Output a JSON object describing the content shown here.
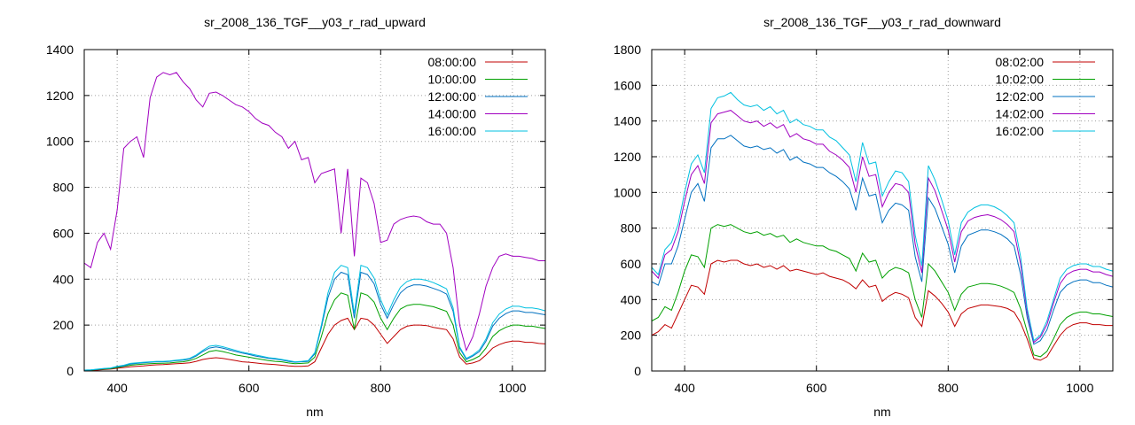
{
  "colors": [
    "#c00000",
    "#00a000",
    "#0070c0",
    "#a000c0",
    "#00c0e0"
  ],
  "chart_data": [
    {
      "type": "line",
      "title": "sr_2008_136_TGF__y03_r_rad_upward",
      "xlabel": "nm",
      "ylabel": "",
      "xlim": [
        350,
        1050
      ],
      "ylim": [
        0,
        1400
      ],
      "xticks": [
        400,
        600,
        800,
        1000
      ],
      "yticks": [
        0,
        200,
        400,
        600,
        800,
        1000,
        1200,
        1400
      ],
      "grid": true,
      "legend_position": "top-right",
      "x": [
        350,
        360,
        370,
        380,
        390,
        400,
        410,
        420,
        430,
        440,
        450,
        460,
        470,
        480,
        490,
        500,
        510,
        520,
        530,
        540,
        550,
        560,
        570,
        580,
        590,
        600,
        610,
        620,
        630,
        640,
        650,
        660,
        670,
        680,
        690,
        700,
        710,
        720,
        730,
        740,
        750,
        760,
        770,
        780,
        790,
        800,
        810,
        820,
        830,
        840,
        850,
        860,
        870,
        880,
        890,
        900,
        910,
        920,
        930,
        940,
        950,
        960,
        970,
        980,
        990,
        1000,
        1010,
        1020,
        1030,
        1040,
        1050
      ],
      "series": [
        {
          "name": "08:00:00",
          "values": [
            2,
            3,
            4,
            6,
            8,
            12,
            15,
            18,
            20,
            22,
            25,
            27,
            28,
            30,
            32,
            33,
            36,
            42,
            50,
            55,
            58,
            55,
            50,
            45,
            40,
            38,
            35,
            32,
            30,
            28,
            25,
            22,
            20,
            20,
            22,
            40,
            100,
            160,
            200,
            220,
            230,
            180,
            230,
            225,
            200,
            160,
            120,
            150,
            180,
            195,
            200,
            200,
            198,
            190,
            185,
            180,
            140,
            60,
            30,
            35,
            45,
            70,
            100,
            115,
            125,
            130,
            130,
            125,
            125,
            120,
            118
          ]
        },
        {
          "name": "10:00:00",
          "values": [
            3,
            4,
            6,
            8,
            10,
            15,
            20,
            25,
            28,
            30,
            32,
            33,
            34,
            35,
            38,
            40,
            45,
            55,
            70,
            85,
            90,
            85,
            78,
            70,
            65,
            60,
            55,
            50,
            45,
            42,
            40,
            35,
            32,
            33,
            35,
            60,
            150,
            250,
            310,
            340,
            330,
            180,
            340,
            330,
            300,
            230,
            180,
            230,
            270,
            285,
            290,
            290,
            285,
            280,
            270,
            260,
            200,
            80,
            40,
            50,
            65,
            100,
            150,
            175,
            190,
            200,
            200,
            195,
            195,
            190,
            185
          ]
        },
        {
          "name": "12:00:00",
          "values": [
            4,
            5,
            7,
            10,
            12,
            18,
            22,
            30,
            33,
            36,
            38,
            40,
            40,
            42,
            45,
            47,
            52,
            65,
            85,
            100,
            105,
            100,
            92,
            85,
            78,
            72,
            65,
            60,
            55,
            52,
            48,
            42,
            38,
            40,
            42,
            75,
            190,
            320,
            400,
            430,
            420,
            230,
            430,
            420,
            380,
            290,
            230,
            290,
            340,
            365,
            375,
            375,
            370,
            360,
            350,
            335,
            260,
            100,
            50,
            65,
            85,
            130,
            195,
            230,
            250,
            262,
            262,
            255,
            255,
            250,
            245
          ]
        },
        {
          "name": "14:00:00",
          "values": [
            470,
            450,
            560,
            600,
            530,
            700,
            970,
            1000,
            1020,
            930,
            1190,
            1280,
            1300,
            1290,
            1300,
            1260,
            1230,
            1180,
            1150,
            1210,
            1215,
            1200,
            1180,
            1160,
            1150,
            1130,
            1100,
            1080,
            1070,
            1040,
            1020,
            970,
            1000,
            920,
            930,
            820,
            860,
            870,
            880,
            600,
            880,
            500,
            840,
            820,
            730,
            560,
            570,
            640,
            660,
            670,
            675,
            670,
            650,
            640,
            640,
            600,
            450,
            200,
            90,
            150,
            250,
            370,
            450,
            500,
            510,
            500,
            500,
            495,
            490,
            480,
            480
          ]
        },
        {
          "name": "16:00:00",
          "values": [
            4,
            5,
            8,
            11,
            13,
            20,
            25,
            33,
            36,
            38,
            40,
            42,
            42,
            44,
            47,
            50,
            55,
            70,
            90,
            108,
            112,
            106,
            98,
            90,
            82,
            76,
            70,
            64,
            58,
            55,
            50,
            45,
            40,
            42,
            45,
            80,
            200,
            340,
            430,
            460,
            450,
            250,
            460,
            450,
            405,
            310,
            245,
            310,
            365,
            390,
            400,
            400,
            395,
            385,
            372,
            358,
            275,
            105,
            55,
            70,
            92,
            140,
            210,
            248,
            270,
            282,
            282,
            275,
            275,
            270,
            262
          ]
        }
      ]
    },
    {
      "type": "line",
      "title": "sr_2008_136_TGF__y03_r_rad_downward",
      "xlabel": "nm",
      "ylabel": "",
      "xlim": [
        350,
        1050
      ],
      "ylim": [
        0,
        1800
      ],
      "xticks": [
        400,
        600,
        800,
        1000
      ],
      "yticks": [
        0,
        200,
        400,
        600,
        800,
        1000,
        1200,
        1400,
        1600,
        1800
      ],
      "grid": true,
      "legend_position": "top-right",
      "x": [
        350,
        360,
        370,
        380,
        390,
        400,
        410,
        420,
        430,
        440,
        450,
        460,
        470,
        480,
        490,
        500,
        510,
        520,
        530,
        540,
        550,
        560,
        570,
        580,
        590,
        600,
        610,
        620,
        630,
        640,
        650,
        660,
        670,
        680,
        690,
        700,
        710,
        720,
        730,
        740,
        750,
        760,
        770,
        780,
        790,
        800,
        810,
        820,
        830,
        840,
        850,
        860,
        870,
        880,
        890,
        900,
        910,
        920,
        930,
        940,
        950,
        960,
        970,
        980,
        990,
        1000,
        1010,
        1020,
        1030,
        1040,
        1050
      ],
      "series": [
        {
          "name": "08:02:00",
          "values": [
            200,
            220,
            260,
            240,
            320,
            400,
            480,
            470,
            430,
            600,
            620,
            610,
            620,
            620,
            600,
            590,
            600,
            580,
            590,
            570,
            590,
            560,
            570,
            560,
            550,
            540,
            550,
            530,
            520,
            510,
            490,
            460,
            510,
            470,
            480,
            390,
            420,
            440,
            430,
            410,
            300,
            250,
            450,
            420,
            380,
            330,
            250,
            320,
            350,
            360,
            370,
            370,
            365,
            360,
            350,
            330,
            270,
            180,
            70,
            60,
            80,
            140,
            200,
            240,
            260,
            270,
            270,
            260,
            260,
            255,
            255
          ]
        },
        {
          "name": "10:02:00",
          "values": [
            280,
            300,
            360,
            340,
            440,
            560,
            650,
            640,
            580,
            800,
            820,
            810,
            820,
            800,
            780,
            770,
            780,
            760,
            770,
            750,
            760,
            720,
            740,
            720,
            710,
            700,
            700,
            680,
            670,
            650,
            630,
            560,
            660,
            610,
            620,
            520,
            560,
            580,
            570,
            550,
            400,
            300,
            600,
            560,
            500,
            440,
            340,
            430,
            470,
            480,
            490,
            490,
            485,
            475,
            460,
            440,
            350,
            220,
            90,
            80,
            110,
            180,
            260,
            300,
            320,
            330,
            330,
            320,
            320,
            312,
            305
          ]
        },
        {
          "name": "12:02:00",
          "values": [
            500,
            480,
            600,
            600,
            700,
            850,
            1000,
            1050,
            950,
            1250,
            1300,
            1300,
            1320,
            1290,
            1260,
            1250,
            1260,
            1240,
            1250,
            1220,
            1240,
            1180,
            1200,
            1170,
            1160,
            1140,
            1140,
            1110,
            1090,
            1060,
            1020,
            900,
            1080,
            980,
            990,
            830,
            900,
            940,
            930,
            900,
            640,
            500,
            970,
            910,
            810,
            710,
            550,
            700,
            760,
            775,
            790,
            790,
            780,
            765,
            740,
            700,
            540,
            300,
            150,
            170,
            230,
            340,
            440,
            480,
            500,
            510,
            510,
            495,
            495,
            480,
            470
          ]
        },
        {
          "name": "14:02:00",
          "values": [
            560,
            520,
            650,
            680,
            780,
            950,
            1100,
            1150,
            1050,
            1390,
            1440,
            1450,
            1460,
            1430,
            1400,
            1390,
            1400,
            1370,
            1390,
            1360,
            1380,
            1310,
            1330,
            1300,
            1290,
            1270,
            1270,
            1230,
            1210,
            1180,
            1140,
            1000,
            1200,
            1090,
            1100,
            920,
            1000,
            1050,
            1040,
            1000,
            710,
            550,
            1080,
            1010,
            900,
            790,
            610,
            780,
            840,
            860,
            870,
            875,
            865,
            848,
            820,
            780,
            600,
            330,
            160,
            190,
            260,
            380,
            490,
            540,
            560,
            570,
            570,
            555,
            555,
            540,
            530
          ]
        },
        {
          "name": "16:02:00",
          "values": [
            580,
            540,
            680,
            720,
            820,
            1000,
            1160,
            1210,
            1110,
            1470,
            1530,
            1540,
            1560,
            1520,
            1490,
            1480,
            1490,
            1460,
            1480,
            1440,
            1460,
            1390,
            1410,
            1380,
            1370,
            1350,
            1350,
            1310,
            1290,
            1250,
            1210,
            1060,
            1280,
            1160,
            1170,
            980,
            1060,
            1120,
            1110,
            1060,
            760,
            590,
            1150,
            1070,
            960,
            840,
            650,
            830,
            890,
            915,
            930,
            930,
            920,
            900,
            870,
            830,
            640,
            350,
            170,
            200,
            280,
            400,
            520,
            570,
            590,
            600,
            600,
            585,
            585,
            570,
            560
          ]
        }
      ]
    }
  ]
}
